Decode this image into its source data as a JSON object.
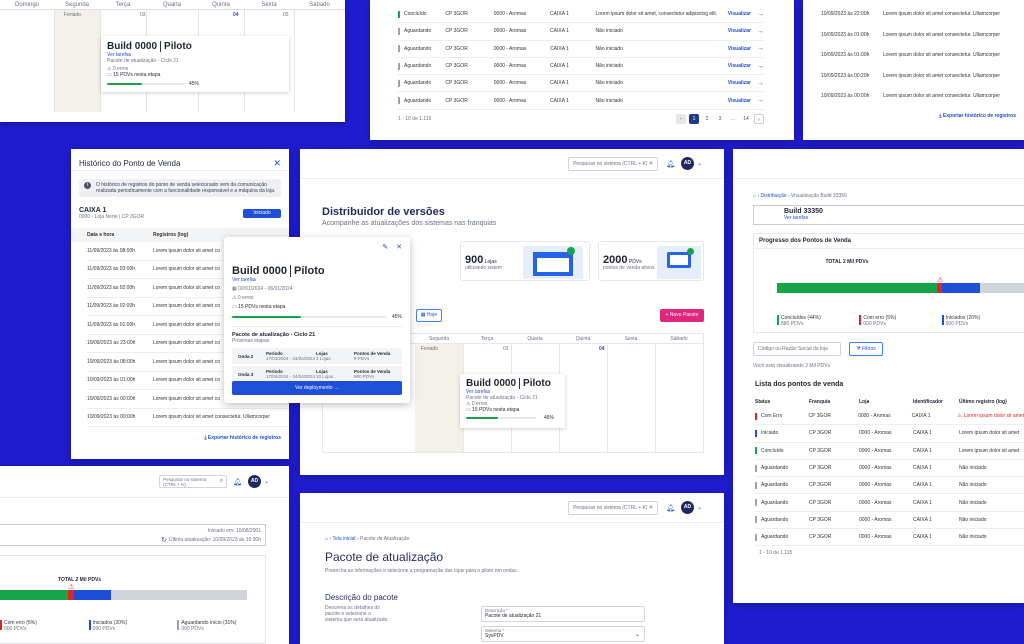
{
  "calendar_top": {
    "days": [
      "Domingo",
      "Segunda",
      "Terça",
      "Quarta",
      "Quinta",
      "Sexta",
      "Sábado"
    ],
    "dates": [
      "",
      "Feriado",
      "03",
      "",
      "04",
      "05",
      ""
    ],
    "build": {
      "title": "Build 0000",
      "env": "Piloto",
      "link": "Ver tarefas",
      "pack": "Pacote de atualização - Ciclo 21",
      "errors": "0 erros",
      "pdvs": "15 PDVs nesta etapa",
      "pct": "45%",
      "progress": 0.45
    }
  },
  "table_top": {
    "rows": [
      {
        "status": "Concluído",
        "color": "#16a34a",
        "cp": "CP 3GOR",
        "loja": "0000 - Aromas",
        "caixa": "CAIXA 1",
        "log": "Lorem ipsum dolor sit amet, consectetur adipiscing elit.",
        "action": "Visualizar"
      },
      {
        "status": "Aguardando",
        "color": "#9ca3af",
        "cp": "CP 3GOR",
        "loja": "0000 - Aromas",
        "caixa": "CAIXA 1",
        "log": "Não iniciado",
        "action": "Visualizar"
      },
      {
        "status": "Aguardando",
        "color": "#9ca3af",
        "cp": "CP 3GOR",
        "loja": "0000 - Aromas",
        "caixa": "CAIXA 1",
        "log": "Não iniciado",
        "action": "Visualizar"
      },
      {
        "status": "Aguardando",
        "color": "#9ca3af",
        "cp": "CP 3GOR",
        "loja": "0000 - Aromas",
        "caixa": "CAIXA 1",
        "log": "Não iniciado",
        "action": "Visualizar"
      },
      {
        "status": "Aguardando",
        "color": "#9ca3af",
        "cp": "CP 3GOR",
        "loja": "0000 - Aromas",
        "caixa": "CAIXA 1",
        "log": "Não iniciado",
        "action": "Visualizar"
      },
      {
        "status": "Aguardando",
        "color": "#9ca3af",
        "cp": "CP 3GOR",
        "loja": "0000 - Aromas",
        "caixa": "CAIXA 1",
        "log": "Não iniciado",
        "action": "Visualizar"
      }
    ],
    "range": "1 - 10 de 1.115",
    "pages": [
      "1",
      "2",
      "3",
      "...",
      "14"
    ]
  },
  "history_top": {
    "rows": [
      {
        "date": "10/09/2023 às 22:00h",
        "log": "Lorem ipsum dolor sit amet consectetur. Ullamcorper"
      },
      {
        "date": "10/09/2023 às 01:00h",
        "log": "Lorem ipsum dolor sit amet consectetur. Ullamcorper"
      },
      {
        "date": "10/09/2023 às 01:00h",
        "log": "Lorem ipsum dolor sit amet consectetur. Ullamcorper"
      },
      {
        "date": "10/09/2023 às 00:20h",
        "log": "Lorem ipsum dolor sit amet consectetur. Ullamcorper"
      },
      {
        "date": "10/09/2023 às 00:00h",
        "log": "Lorem ipsum dolor sit amet consectetur. Ullamcorper"
      }
    ],
    "export": "Exportar histórico de registros"
  },
  "dialog": {
    "title": "Histórico do Ponto de Venda",
    "info": "O histórico de registros do ponto de venda selecionado vem da comunicação realizada periodicamente com a funcionalidade responsável e a máquina da loja.",
    "caixa": "CAIXA 1",
    "caixa_sub": "0000 - Loja Norte | CP 3GOR",
    "badge": "Iniciado",
    "col_date": "Data e hora",
    "col_log": "Registros (log)",
    "rows": [
      {
        "date": "11/09/2023 às 08:00h",
        "log": "Lorem ipsum dolor sit amet co"
      },
      {
        "date": "11/09/2023 às 03:00h",
        "log": "Lorem ipsum dolor sit amet co"
      },
      {
        "date": "11/09/2023 às 02:00h",
        "log": "Lorem ipsum dolor sit amet co"
      },
      {
        "date": "11/09/2023 às 02:00h",
        "log": "Lorem ipsum dolor sit amet co"
      },
      {
        "date": "11/09/2023 às 01:00h",
        "log": "Lorem ipsum dolor sit amet co"
      },
      {
        "date": "10/09/2023 às 23:00h",
        "log": "Lorem ipsum dolor sit amet co"
      },
      {
        "date": "10/09/2023 às 08:00h",
        "log": "Lorem ipsum dolor sit amet co"
      },
      {
        "date": "10/09/2023 às 01:00h",
        "log": "Lorem ipsum dolor sit amet co"
      },
      {
        "date": "10/09/2023 às 00:00h",
        "log": "Lorem ipsum dolor sit amet co"
      },
      {
        "date": "10/09/2023 às 00:00h",
        "log": "Lorem ipsum dolor sit amet consectetur. Ullamcorper"
      }
    ],
    "export": "Exportar histórico de registros"
  },
  "main": {
    "search_placeholder": "Pesquisar no sistema (CTRL + K)",
    "avatar": "AD",
    "title": "Distribuidor de versões",
    "subtitle": "Acompanhe as atualizações dos sistemas nas franquias",
    "kpis": [
      {
        "value": "900",
        "unit": "Lojas",
        "label": "utilizando sistem"
      },
      {
        "value": "2000",
        "unit": "PDVs",
        "label": "pontos de venda ativos"
      }
    ],
    "hoje": "Hoje",
    "new_btn": "+ Novo Pacote",
    "days": [
      "Segunda",
      "Terça",
      "Quarta",
      "Quinta",
      "Sexta",
      "Sábado"
    ],
    "feriado": "Feriado",
    "d1": "03",
    "d2": "04",
    "build": {
      "title": "Build 0000",
      "env": "Piloto",
      "link": "Ver tarefas",
      "pack": "Pacote de atualização - Ciclo 21",
      "errors": "0 erros",
      "pdvs": "15 PDVs nesta etapa",
      "pct": "45%",
      "progress": 0.45
    },
    "partial_label": "o"
  },
  "popup": {
    "title": "Build 0000",
    "env": "Piloto",
    "link": "Ver tarefas",
    "dates": "02/01/2024 - 06/01/2024",
    "errors": "0 erros",
    "pdvs": "15 PDVs nesta etapa",
    "pct": "45%",
    "progress": 0.45,
    "pack": "Pacote de atualização - Ciclo 21",
    "next": "Próximas etapas",
    "waves": [
      {
        "name": "Onda 2",
        "period_l": "Período",
        "period": "17/04/2024 - 24/04/2024",
        "lojas_l": "Lojas",
        "lojas": "3 Lojas",
        "pdv_l": "Pontos de Venda",
        "pdv": "9 PDVs"
      },
      {
        "name": "Onda 3",
        "period_l": "Período",
        "period": "17/04/2024 - 24/04/2024",
        "lojas_l": "Lojas",
        "lojas": "10 Lojas",
        "pdv_l": "Pontos de Venda",
        "pdv": "900 PDVs"
      }
    ],
    "cta": "Ver deploymento →"
  },
  "detail": {
    "breadcrumb_1": "Distribuição",
    "breadcrumb_2": "Visualização Build 33350",
    "build": "Build 33350",
    "link": "Ver tarefas",
    "progress_title": "Progresso dos Pontos de Venda",
    "total": "TOTAL 2 Mil PDVs",
    "legend": [
      {
        "label": "Concluídos (44%)",
        "sub": "880 PDVs",
        "color": "#16a34a"
      },
      {
        "label": "Com erro (5%)",
        "sub": "000 PDVs",
        "color": "#dc2626"
      },
      {
        "label": "Iniciados (20%)",
        "sub": "000 PDVs",
        "color": "#1d4ed8"
      }
    ],
    "filter_placeholder": "Código ou Razão Social da loja",
    "filter_btn": "Filtros",
    "viewing": "Você está visualizando 2 Mil PDVs",
    "list_title": "Lista dos pontos de venda",
    "cols": [
      "Status",
      "Franquia",
      "Loja",
      "Identificador",
      "Último registro (log)"
    ],
    "rows": [
      {
        "status": "Com Erro",
        "color": "#dc2626",
        "cp": "CP 3GOR",
        "loja": "0000 - Aromas",
        "caixa": "CAIXA 1",
        "log": "Lorem ipsum dolor sit amet",
        "err": true
      },
      {
        "status": "Iniciado",
        "color": "#1d4ed8",
        "cp": "CP 3GOR",
        "loja": "0000 - Aromas",
        "caixa": "CAIXA 1",
        "log": "Lorem ipsum dolor sit amet"
      },
      {
        "status": "Concluído",
        "color": "#16a34a",
        "cp": "CP 3GOR",
        "loja": "0000 - Aromas",
        "caixa": "CAIXA 1",
        "log": "Lorem ipsum dolor sit amet"
      },
      {
        "status": "Aguardando",
        "color": "#9ca3af",
        "cp": "CP 3GOR",
        "loja": "0000 - Aromas",
        "caixa": "CAIXA 1",
        "log": "Não iniciado"
      },
      {
        "status": "Aguardando",
        "color": "#9ca3af",
        "cp": "CP 3GOR",
        "loja": "0000 - Aromas",
        "caixa": "CAIXA 1",
        "log": "Não iniciado"
      },
      {
        "status": "Aguardando",
        "color": "#9ca3af",
        "cp": "CP 3GOR",
        "loja": "0000 - Aromas",
        "caixa": "CAIXA 1",
        "log": "Não iniciado"
      },
      {
        "status": "Aguardando",
        "color": "#9ca3af",
        "cp": "CP 3GOR",
        "loja": "0000 - Aromas",
        "caixa": "CAIXA 1",
        "log": "Não iniciado"
      },
      {
        "status": "Aguardando",
        "color": "#9ca3af",
        "cp": "CP 3GOR",
        "loja": "0000 - Aromas",
        "caixa": "CAIXA 1",
        "log": "Não iniciado"
      }
    ],
    "range": "1 - 10 de 1.115"
  },
  "bottom_left": {
    "search_placeholder": "Pesquisar no sistema (CTRL + K)",
    "avatar": "AD",
    "started": "Iniciado em: 10/08/2001",
    "updated": "Última atualização: 10/09/2023 às 16:30h",
    "total": "TOTAL 2 Mil PDVs",
    "legend": [
      {
        "label": "Com erro (5%)",
        "sub": "000 PDVs",
        "color": "#dc2626"
      },
      {
        "label": "Iniciados (20%)",
        "sub": "000 PDVs",
        "color": "#1d4ed8"
      },
      {
        "label": "Aguardando início (31%)",
        "sub": "000 PDVs",
        "color": "#9ca3af"
      }
    ]
  },
  "form": {
    "search_placeholder": "Pesquisar no sistema (CTRL + K)",
    "avatar": "AD",
    "breadcrumb_1": "Tela inicial",
    "breadcrumb_2": "Pacote de Atualização",
    "title": "Pacote de atualização",
    "subtitle": "Preencha as informações e selecione a programação das lojas para o piloto em ondas.",
    "section": "Descrição do pacote",
    "section_desc": "Descreva os detalhes do pacote e selecione o sistema que será atualizado.",
    "desc_label": "Descrição *",
    "desc_value": "Pacote de atualização 21",
    "sys_label": "Sistema *",
    "sys_value": "SysPDV"
  }
}
